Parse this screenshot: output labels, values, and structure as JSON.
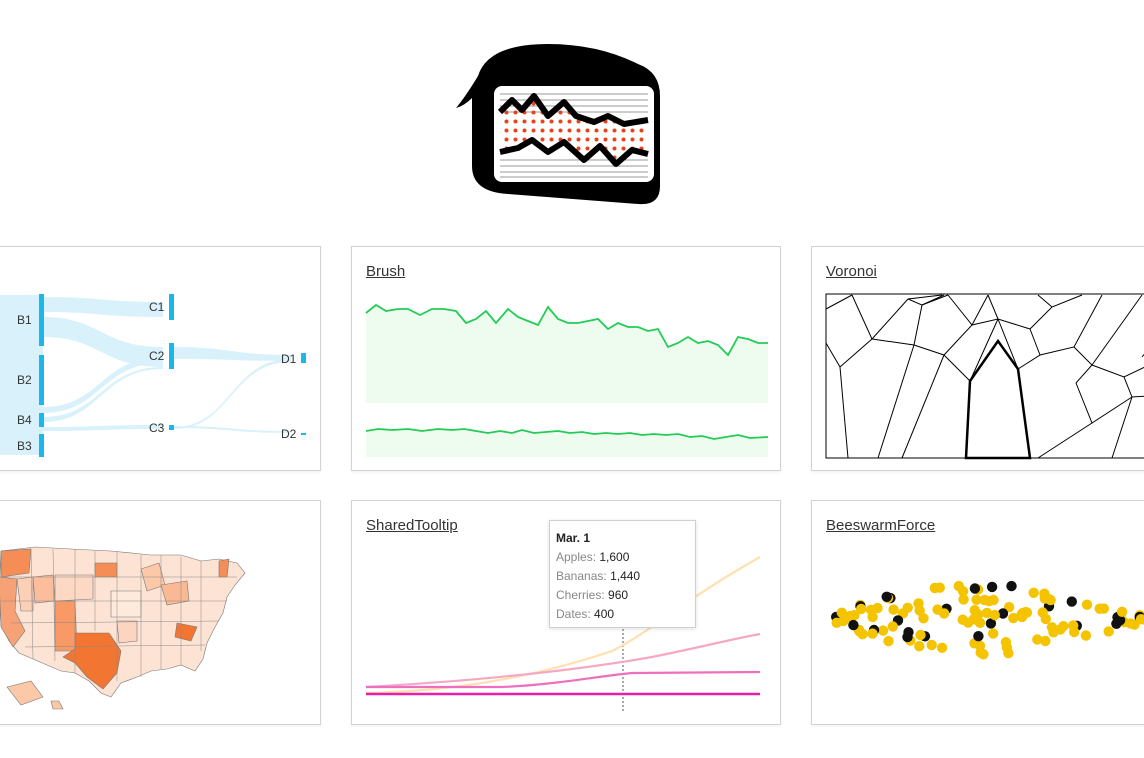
{
  "logo": {
    "name": "cake-logo"
  },
  "cards": {
    "sankey": {
      "title": "",
      "nodes": [
        "B1",
        "B2",
        "B4",
        "B3",
        "C1",
        "C2",
        "C3",
        "D1",
        "D2"
      ],
      "color": "#1ab7ea"
    },
    "brush": {
      "title": "Brush",
      "color": "#22cc55"
    },
    "voronoi": {
      "title": "Voronoi"
    },
    "map": {
      "title": "",
      "color": "#f07a3a"
    },
    "tooltip": {
      "title": "SharedTooltip",
      "tooltip_title": "Mar. 1",
      "rows": [
        {
          "label": "Apples:",
          "value": "1,600"
        },
        {
          "label": "Bananas:",
          "value": "1,440"
        },
        {
          "label": "Cherries:",
          "value": "960"
        },
        {
          "label": "Dates:",
          "value": "400"
        }
      ]
    },
    "beeswarm": {
      "title": "BeeswarmForce",
      "colors": [
        "#f5c400",
        "#111111"
      ]
    }
  }
}
